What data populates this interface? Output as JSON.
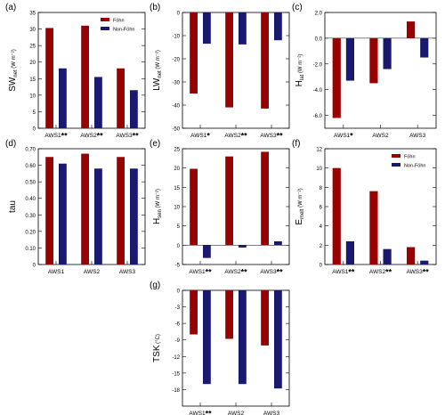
{
  "colors": {
    "fohn": "#990000",
    "nonfohn": "#191970",
    "axis": "#000000"
  },
  "legend_labels": {
    "fohn": "Föhn",
    "nonfohn": "Non-Föhn"
  },
  "chart_data": [
    {
      "panel": "(a)",
      "type": "bar",
      "ylabel_main": "SW",
      "ylabel_sub": "net",
      "ylabel_unit": "(W m⁻²)",
      "ylim": [
        0,
        35
      ],
      "yticks": [
        0,
        5,
        10,
        15,
        20,
        25,
        30,
        35
      ],
      "categories": [
        "AWS1",
        "AWS2",
        "AWS3"
      ],
      "category_marks": [
        "**",
        "**",
        "**"
      ],
      "series": [
        {
          "name": "Föhn",
          "values": [
            30.3,
            31.0,
            18.1
          ]
        },
        {
          "name": "Non-Föhn",
          "values": [
            18.1,
            15.5,
            11.5
          ]
        }
      ],
      "legend": "top-right"
    },
    {
      "panel": "(b)",
      "type": "bar",
      "ylabel_main": "LW",
      "ylabel_sub": "net",
      "ylabel_unit": "(W m⁻²)",
      "ylim": [
        -50,
        0
      ],
      "yticks": [
        -50,
        -40,
        -30,
        -20,
        -10,
        0
      ],
      "categories": [
        "AWS1",
        "AWS2",
        "AWS3"
      ],
      "category_marks": [
        "*",
        "**",
        "**"
      ],
      "series": [
        {
          "name": "Föhn",
          "values": [
            -35,
            -41,
            -41.5
          ]
        },
        {
          "name": "Non-Föhn",
          "values": [
            -13.5,
            -13.8,
            -12
          ]
        }
      ]
    },
    {
      "panel": "(c)",
      "type": "bar",
      "ylabel_main": "H",
      "ylabel_sub": "lat",
      "ylabel_unit": "(W m⁻²)",
      "ylim": [
        -7,
        2
      ],
      "yticks": [
        -6.0,
        -4.0,
        -2.0,
        0.0,
        2.0
      ],
      "tick_format": "1dp",
      "categories": [
        "AWS1",
        "AWS2",
        "AWS3"
      ],
      "category_marks": [
        "*",
        "",
        ""
      ],
      "series": [
        {
          "name": "Föhn",
          "values": [
            -6.2,
            -3.5,
            1.3
          ]
        },
        {
          "name": "Non-Föhn",
          "values": [
            -3.3,
            -2.4,
            -1.5
          ]
        }
      ]
    },
    {
      "panel": "(d)",
      "type": "bar",
      "ylabel_main": "tau",
      "ylabel_sub": "",
      "ylabel_unit": "",
      "ylim": [
        0,
        0.7
      ],
      "yticks": [
        0,
        0.1,
        0.2,
        0.3,
        0.4,
        0.5,
        0.6,
        0.7
      ],
      "tick_format": "2dp",
      "categories": [
        "AWS1",
        "AWS2",
        "AWS3"
      ],
      "category_marks": [
        "",
        "",
        ""
      ],
      "series": [
        {
          "name": "Föhn",
          "values": [
            0.65,
            0.67,
            0.65
          ]
        },
        {
          "name": "Non-Föhn",
          "values": [
            0.61,
            0.58,
            0.58
          ]
        }
      ]
    },
    {
      "panel": "(e)",
      "type": "bar",
      "ylabel_main": "H",
      "ylabel_sub": "sen",
      "ylabel_unit": "(W m⁻²)",
      "ylim": [
        -5,
        25
      ],
      "yticks": [
        -5,
        0,
        5,
        10,
        15,
        20,
        25
      ],
      "categories": [
        "AWS1",
        "AWS2",
        "AWS3"
      ],
      "category_marks": [
        "**",
        "**",
        "**"
      ],
      "series": [
        {
          "name": "Föhn",
          "values": [
            19.8,
            23.0,
            24.2
          ]
        },
        {
          "name": "Non-Föhn",
          "values": [
            -3.3,
            -0.6,
            1.0
          ]
        }
      ]
    },
    {
      "panel": "(f)",
      "type": "bar",
      "ylabel_main": "E",
      "ylabel_sub": "melt",
      "ylabel_unit": "(W m⁻²)",
      "ylim": [
        0,
        12
      ],
      "yticks": [
        0,
        2,
        4,
        6,
        8,
        10,
        12
      ],
      "categories": [
        "AWS1",
        "AWS2",
        "AWS3"
      ],
      "category_marks": [
        "**",
        "**",
        "**"
      ],
      "series": [
        {
          "name": "Föhn",
          "values": [
            10.0,
            7.6,
            1.8
          ]
        },
        {
          "name": "Non-Föhn",
          "values": [
            2.4,
            1.6,
            0.4
          ]
        }
      ],
      "legend": "top-right"
    },
    {
      "panel": "(g)",
      "type": "bar",
      "ylabel_main": "TSK",
      "ylabel_sub": "",
      "ylabel_unit": "(°C)",
      "ylim": [
        -21,
        0
      ],
      "yticks": [
        -18,
        -15,
        -12,
        -9,
        -6,
        -3,
        0
      ],
      "categories": [
        "AWS1",
        "AWS2",
        "AWS3"
      ],
      "category_marks": [
        "**",
        "",
        ""
      ],
      "series": [
        {
          "name": "Föhn",
          "values": [
            -8.0,
            -8.8,
            -10.0
          ]
        },
        {
          "name": "Non-Föhn",
          "values": [
            -17.0,
            -17.0,
            -17.8
          ]
        }
      ]
    }
  ]
}
